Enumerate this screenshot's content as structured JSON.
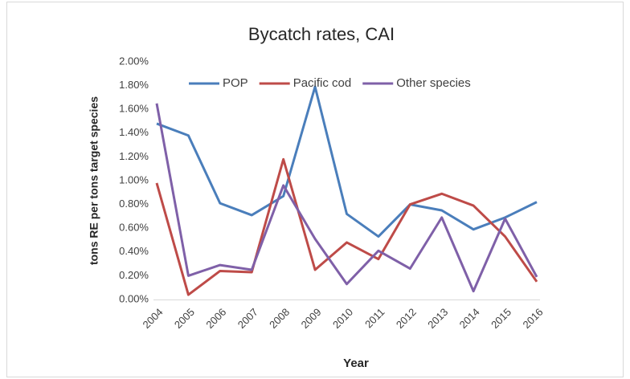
{
  "chart_data": {
    "type": "line",
    "title": "Bycatch rates, CAI",
    "x_label": "Year",
    "y_label": "tons RE per tons target species",
    "x": [
      2004,
      2005,
      2006,
      2007,
      2008,
      2009,
      2010,
      2011,
      2012,
      2013,
      2014,
      2015,
      2016
    ],
    "series": [
      {
        "name": "POP",
        "color": "#4a7ebb",
        "values": [
          1.48,
          1.38,
          0.81,
          0.71,
          0.87,
          1.79,
          0.72,
          0.53,
          0.8,
          0.75,
          0.59,
          0.69,
          0.82
        ]
      },
      {
        "name": "Pacific cod",
        "color": "#be4b48",
        "values": [
          0.98,
          0.04,
          0.24,
          0.23,
          1.18,
          0.25,
          0.48,
          0.34,
          0.8,
          0.89,
          0.79,
          0.53,
          0.15
        ]
      },
      {
        "name": "Other species",
        "color": "#7f60a8",
        "values": [
          1.65,
          0.2,
          0.29,
          0.25,
          0.96,
          0.51,
          0.13,
          0.41,
          0.26,
          0.69,
          0.07,
          0.68,
          0.19
        ]
      }
    ],
    "ylim": [
      0,
      2.0
    ],
    "yticks": [
      {
        "value": 0,
        "label": "0.00%"
      },
      {
        "value": 0.2,
        "label": "0.20%"
      },
      {
        "value": 0.4,
        "label": "0.40%"
      },
      {
        "value": 0.6,
        "label": "0.60%"
      },
      {
        "value": 0.8,
        "label": "0.80%"
      },
      {
        "value": 1.0,
        "label": "1.00%"
      },
      {
        "value": 1.2,
        "label": "1.20%"
      },
      {
        "value": 1.4,
        "label": "1.40%"
      },
      {
        "value": 1.6,
        "label": "1.60%"
      },
      {
        "value": 1.8,
        "label": "1.80%"
      },
      {
        "value": 2.0,
        "label": "2.00%"
      }
    ],
    "grid": false,
    "legend": "top"
  }
}
